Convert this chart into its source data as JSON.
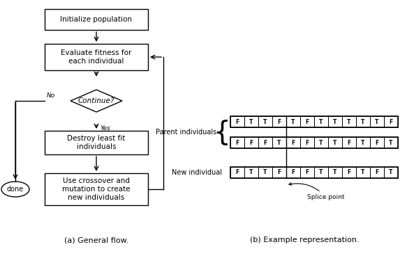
{
  "bg_color": "#ffffff",
  "parent1": [
    "F",
    "T",
    "T",
    "F",
    "T",
    "F",
    "T",
    "T",
    "T",
    "T",
    "T",
    "F"
  ],
  "parent2": [
    "F",
    "F",
    "F",
    "T",
    "F",
    "F",
    "T",
    "T",
    "F",
    "T",
    "F",
    "T"
  ],
  "child": [
    "F",
    "T",
    "T",
    "F",
    "F",
    "F",
    "T",
    "T",
    "F",
    "T",
    "F",
    "T"
  ],
  "splice_col": 4,
  "caption_a": "(a) General flow.",
  "caption_b": "(b) Example representation.",
  "label_parent": "Parent individuals",
  "label_new": "New individual",
  "label_splice": "Splice point",
  "yes_label": "Yes",
  "no_label": "No",
  "init_label": "Initialize population",
  "eval_label": "Evaluate fitness for\neach individual",
  "cont_label": "Continue?",
  "dest_label": "Destroy least fit\nindividuals",
  "cross_label": "Use crossover and\nmutation to create\nnew individuals",
  "done_label": "done"
}
